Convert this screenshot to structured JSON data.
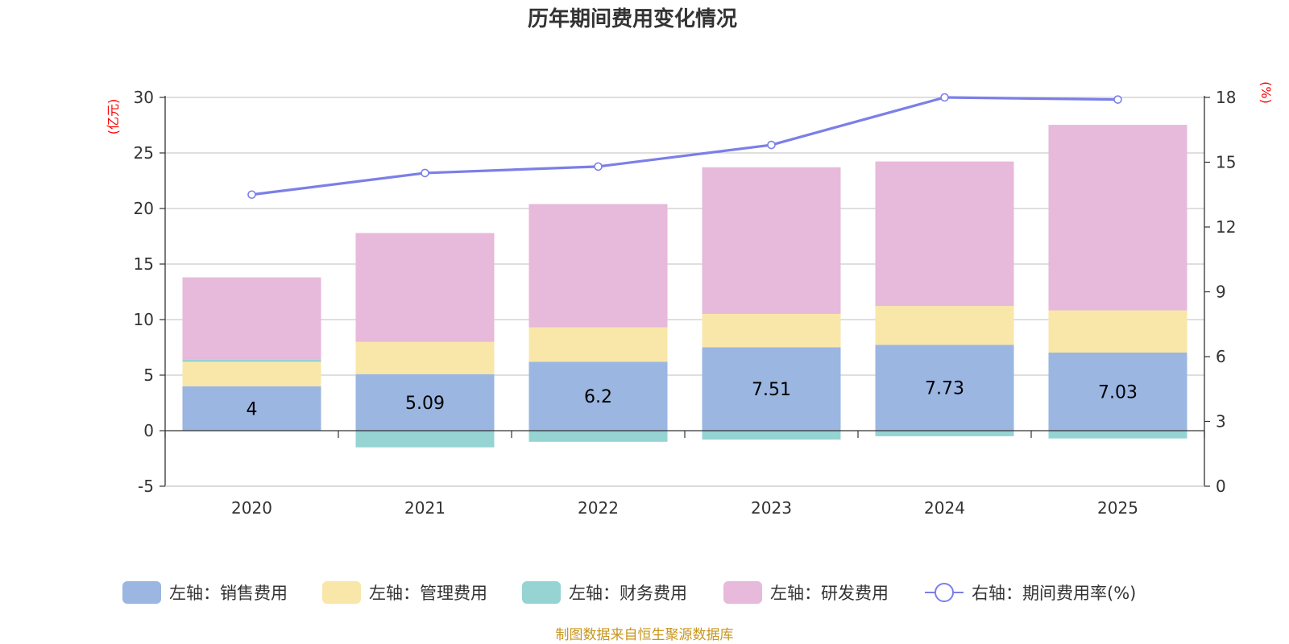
{
  "chart_data": {
    "type": "bar",
    "title": "历年期间费用变化情况",
    "categories": [
      "2020",
      "2021",
      "2022",
      "2023",
      "2024",
      "2025"
    ],
    "left_axis": {
      "unit": "(亿元)",
      "ylim": [
        -5,
        30
      ],
      "ticks": [
        "-5",
        "0",
        "5",
        "10",
        "15",
        "20",
        "25",
        "30"
      ]
    },
    "right_axis": {
      "unit": "(%)",
      "ylim": [
        0,
        18
      ],
      "ticks": [
        "0",
        "3",
        "6",
        "9",
        "12",
        "15",
        "18"
      ]
    },
    "series": [
      {
        "name": "左轴：销售费用",
        "color": "#9ab6e1",
        "values": [
          4.0,
          5.09,
          6.2,
          7.51,
          7.73,
          7.03
        ],
        "labels": [
          "4",
          "5.09",
          "6.2",
          "7.51",
          "7.73",
          "7.03"
        ]
      },
      {
        "name": "左轴：管理费用",
        "color": "#f8e7a9",
        "values": [
          2.2,
          2.9,
          3.1,
          3.0,
          3.5,
          3.8
        ]
      },
      {
        "name": "左轴：财务费用",
        "color": "#96d3d3",
        "values": [
          0.2,
          -1.5,
          -1.0,
          -0.8,
          -0.5,
          -0.7
        ]
      },
      {
        "name": "左轴：研发费用",
        "color": "#e7b9da",
        "values": [
          7.4,
          9.8,
          11.1,
          13.2,
          13.0,
          16.7
        ]
      }
    ],
    "line": {
      "name": "右轴：期间费用率(%)",
      "color": "#7b7fe8",
      "values": [
        13.5,
        14.5,
        14.8,
        15.8,
        18.0,
        17.9
      ]
    }
  },
  "source": "制图数据来自恒生聚源数据库"
}
